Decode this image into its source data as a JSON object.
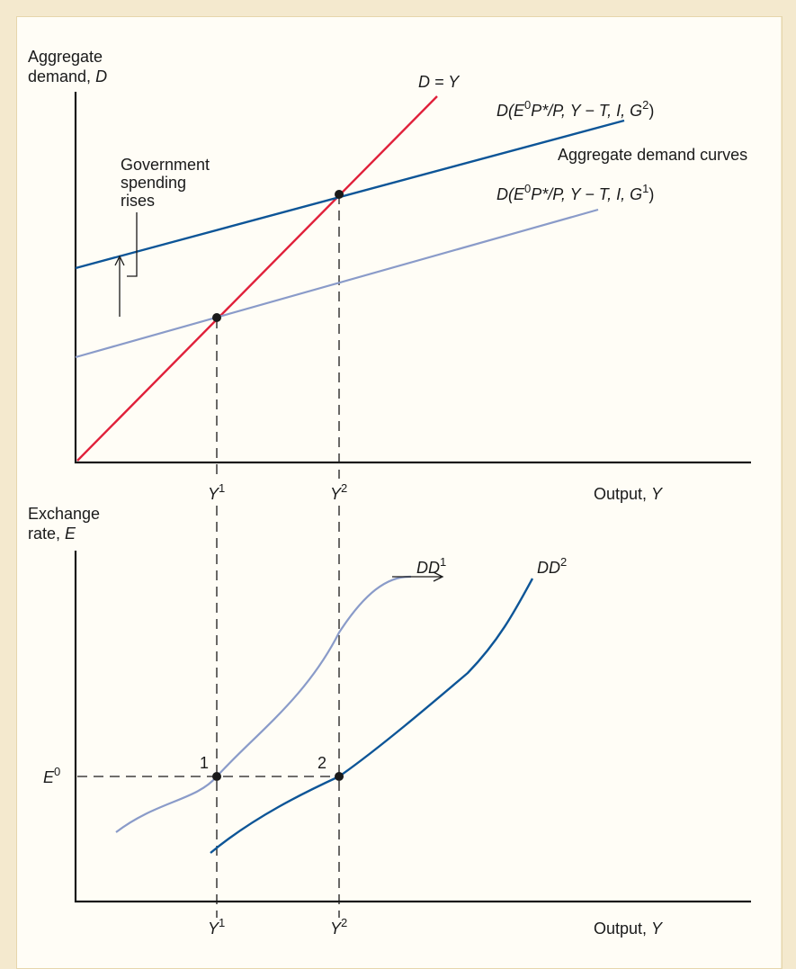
{
  "top": {
    "y_axis_label_line1": "Aggregate",
    "y_axis_label_line2": "demand, ",
    "y_axis_label_var": "D",
    "x_axis_label": "Output, ",
    "x_axis_label_var": "Y",
    "tick_y1": "Y",
    "tick_y1_sup": "1",
    "tick_y2": "Y",
    "tick_y2_sup": "2",
    "line_45": "D = Y",
    "curve_g2_pre": "D(E",
    "curve_g2_sup0": "0",
    "curve_g2_mid": "P*/P, Y − T, I, G",
    "curve_g2_sup": "2",
    "curve_g2_post": ")",
    "curve_g1_pre": "D(E",
    "curve_g1_sup0": "0",
    "curve_g1_mid": "P*/P, Y − T, I, G",
    "curve_g1_sup": "1",
    "curve_g1_post": ")",
    "curves_caption": "Aggregate demand curves",
    "annotation_line1": "Government",
    "annotation_line2": "spending",
    "annotation_line3": "rises"
  },
  "bottom": {
    "y_axis_label_line1": "Exchange",
    "y_axis_label_line2": "rate, ",
    "y_axis_label_var": "E",
    "x_axis_label": "Output, ",
    "x_axis_label_var": "Y",
    "tick_e0": "E",
    "tick_e0_sup": "0",
    "tick_y1": "Y",
    "tick_y1_sup": "1",
    "tick_y2": "Y",
    "tick_y2_sup": "2",
    "curve_dd1": "DD",
    "curve_dd1_sup": "1",
    "curve_dd2": "DD",
    "curve_dd2_sup": "2",
    "point_1": "1",
    "point_2": "2"
  },
  "colors": {
    "d_equals_y": "#e0203a",
    "curve_after": "#0d5597",
    "curve_before": "#8a9bc9"
  }
}
